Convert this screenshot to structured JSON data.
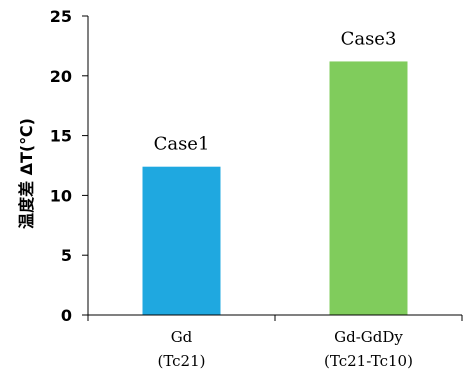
{
  "chart_data": {
    "type": "bar",
    "title": "",
    "xlabel": "",
    "ylabel": "温度差 ΔT(℃)",
    "ylim": [
      0,
      25
    ],
    "yticks": [
      0,
      5,
      10,
      15,
      20,
      25
    ],
    "grid": false,
    "legend": "none",
    "categories": [
      {
        "line1": "Gd",
        "line2": "(Tc21)"
      },
      {
        "line1": "Gd-GdDy",
        "line2": "(Tc21-Tc10)"
      }
    ],
    "values": [
      12.4,
      21.2
    ],
    "data_labels": [
      "Case1",
      "Case3"
    ],
    "colors": [
      "#1fa8e0",
      "#80cc5c"
    ]
  }
}
